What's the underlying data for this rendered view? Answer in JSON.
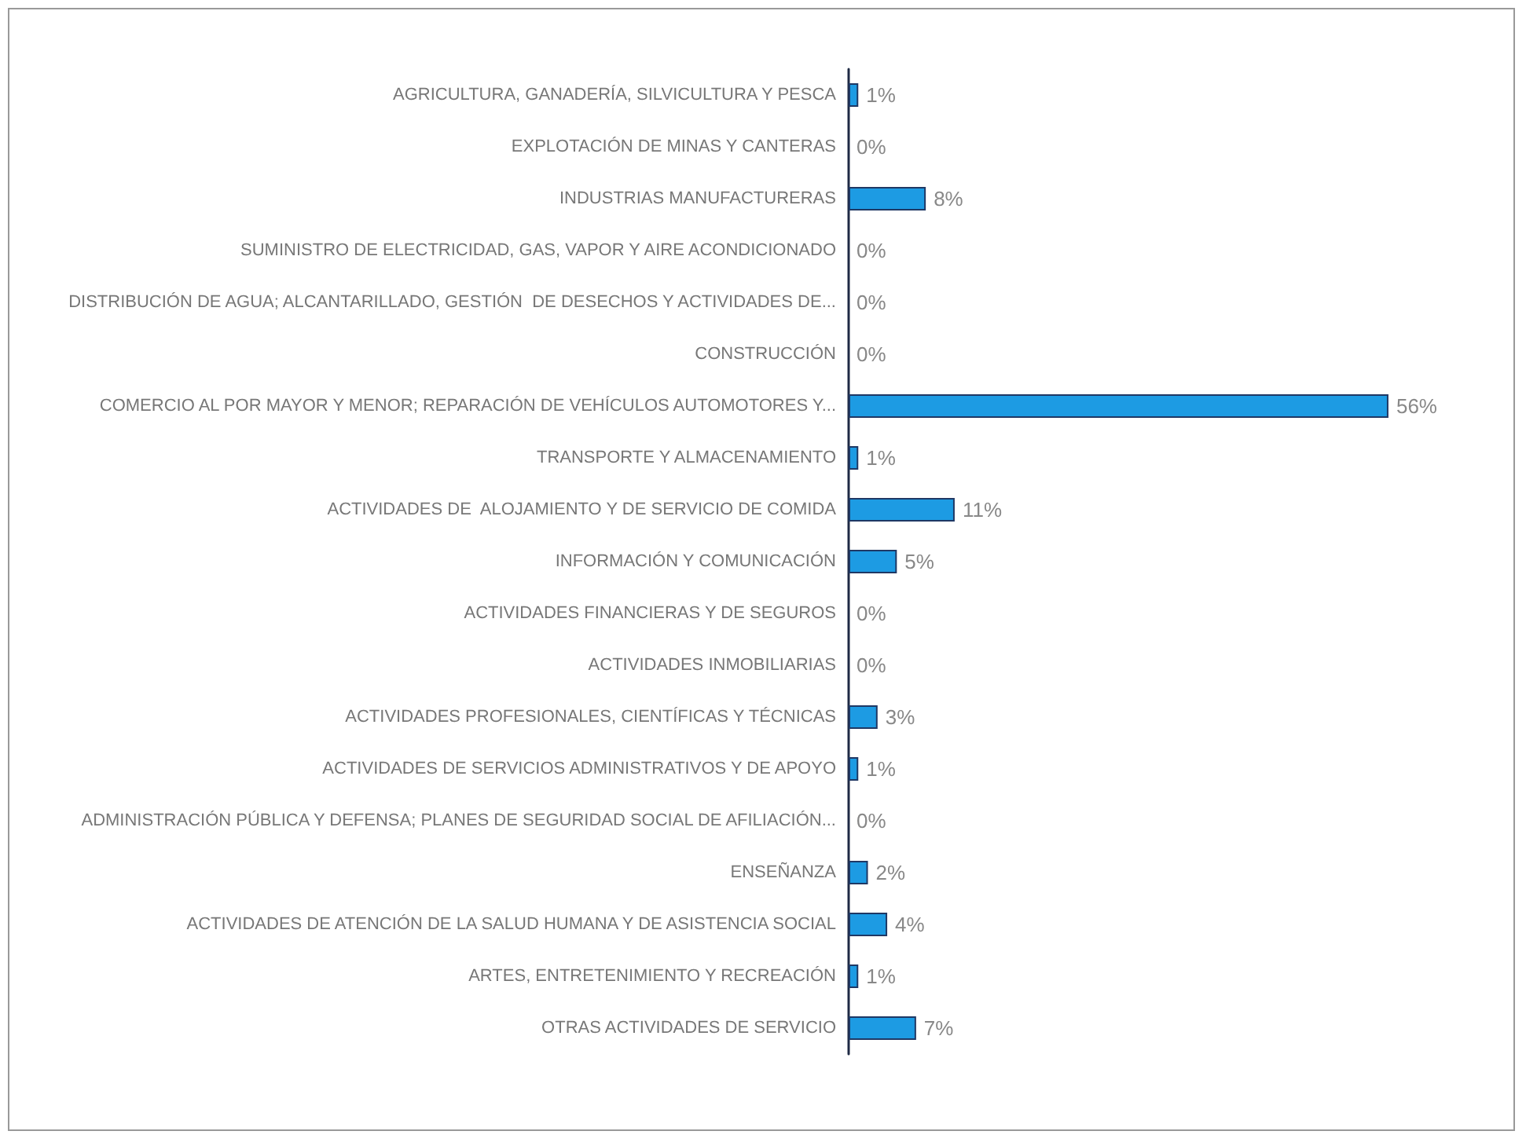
{
  "chart_data": {
    "type": "bar",
    "orientation": "horizontal",
    "categories": [
      "AGRICULTURA, GANADERÍA, SILVICULTURA Y PESCA",
      "EXPLOTACIÓN DE MINAS Y CANTERAS",
      "INDUSTRIAS MANUFACTURERAS",
      "SUMINISTRO DE ELECTRICIDAD, GAS, VAPOR Y AIRE ACONDICIONADO",
      "DISTRIBUCIÓN DE AGUA; ALCANTARILLADO, GESTIÓN  DE DESECHOS Y ACTIVIDADES DE...",
      "CONSTRUCCIÓN",
      "COMERCIO AL POR MAYOR Y MENOR; REPARACIÓN DE VEHÍCULOS AUTOMOTORES Y...",
      "TRANSPORTE Y ALMACENAMIENTO",
      "ACTIVIDADES DE  ALOJAMIENTO Y DE SERVICIO DE COMIDA",
      "INFORMACIÓN Y COMUNICACIÓN",
      "ACTIVIDADES FINANCIERAS Y DE SEGUROS",
      "ACTIVIDADES INMOBILIARIAS",
      "ACTIVIDADES PROFESIONALES, CIENTÍFICAS Y TÉCNICAS",
      "ACTIVIDADES DE SERVICIOS ADMINISTRATIVOS Y DE APOYO",
      "ADMINISTRACIÓN PÚBLICA Y DEFENSA; PLANES DE SEGURIDAD SOCIAL DE AFILIACIÓN...",
      "ENSEÑANZA",
      "ACTIVIDADES DE ATENCIÓN DE LA SALUD HUMANA Y DE ASISTENCIA SOCIAL",
      "ARTES, ENTRETENIMIENTO Y RECREACIÓN",
      "OTRAS ACTIVIDADES DE SERVICIO"
    ],
    "values": [
      1,
      0,
      8,
      0,
      0,
      0,
      56,
      1,
      11,
      5,
      0,
      0,
      3,
      1,
      0,
      2,
      4,
      1,
      7
    ],
    "value_labels": [
      "1%",
      "0%",
      "8%",
      "0%",
      "0%",
      "0%",
      "56%",
      "1%",
      "11%",
      "5%",
      "0%",
      "0%",
      "3%",
      "1%",
      "0%",
      "2%",
      "4%",
      "1%",
      "7%"
    ],
    "color": "#1d9be3"
  }
}
